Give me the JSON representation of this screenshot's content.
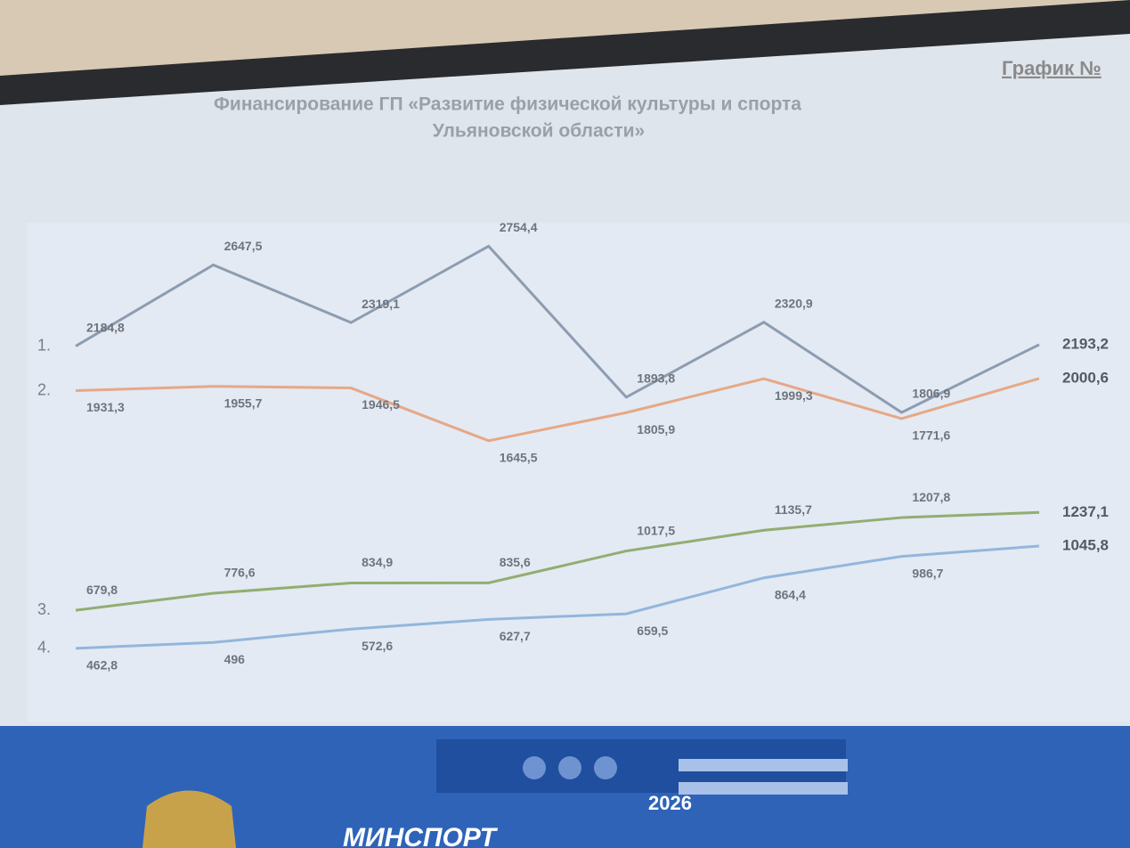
{
  "header": {
    "label": "График №"
  },
  "chart_data": {
    "type": "line",
    "title": "Финансирование ГП «Развитие физической культуры и спорта",
    "subtitle": "Ульяновской области»",
    "categories": [
      null,
      null,
      null,
      null,
      null,
      null,
      null,
      null
    ],
    "ylim": [
      0,
      3000
    ],
    "series": [
      {
        "name": "1.",
        "color": "#8d9cb0",
        "values": [
          2184.8,
          2647.5,
          2319.1,
          2754.4,
          1893.8,
          2320.9,
          1806.9,
          2193.2
        ],
        "value_labels": [
          "2184,8",
          "2647,5",
          "2319,1",
          "2754,4",
          "1893,8",
          "2320,9",
          "1806,9",
          "2193,2"
        ]
      },
      {
        "name": "2.",
        "color": "#e6a887",
        "values": [
          1931.3,
          1955.7,
          1946.5,
          1645.5,
          1805.9,
          1999.3,
          1771.6,
          2000.6
        ],
        "value_labels": [
          "1931,3",
          "1955,7",
          "1946,5",
          "1645,5",
          "1805,9",
          "1999,3",
          "1771,6",
          "2000,6"
        ]
      },
      {
        "name": "3.",
        "color": "#93ad72",
        "values": [
          679.8,
          776.6,
          834.9,
          835.6,
          1017.5,
          1135.7,
          1207.8,
          1237.1
        ],
        "value_labels": [
          "679,8",
          "776,6",
          "834,9",
          "835,6",
          "1017,5",
          "1135,7",
          "1207,8",
          "1237,1"
        ]
      },
      {
        "name": "4.",
        "color": "#93b6dc",
        "values": [
          462.8,
          496,
          572.6,
          627.7,
          659.5,
          864.4,
          986.7,
          1045.8
        ],
        "value_labels": [
          "462,8",
          "496",
          "572,6",
          "627,7",
          "659,5",
          "864,4",
          "986,7",
          "1045,8"
        ]
      }
    ]
  },
  "footer": {
    "brand": "МИНСПОРТ",
    "year": "2026"
  }
}
